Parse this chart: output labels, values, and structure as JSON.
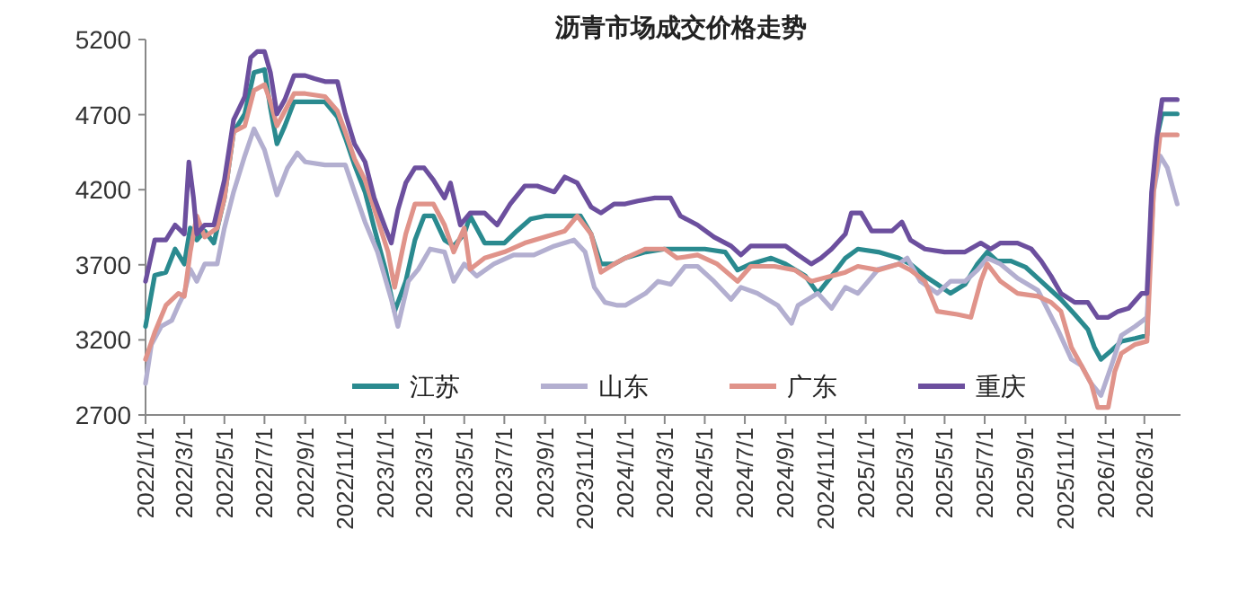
{
  "chart_data": {
    "type": "line",
    "title": "沥青市场成交价格走势",
    "xlim": [
      "2022-01-01",
      "2026-04-25"
    ],
    "ylim": [
      2700,
      5200
    ],
    "yticks": [
      2700,
      3200,
      3700,
      4200,
      4700,
      5200
    ],
    "xticks": [
      {
        "value": "2022-01-01",
        "label": "2022/1/1"
      },
      {
        "value": "2022-03-01",
        "label": "2022/3/1"
      },
      {
        "value": "2022-05-01",
        "label": "2022/5/1"
      },
      {
        "value": "2022-07-01",
        "label": "2022/7/1"
      },
      {
        "value": "2022-09-01",
        "label": "2022/9/1"
      },
      {
        "value": "2022-11-01",
        "label": "2022/11/1"
      },
      {
        "value": "2023-01-01",
        "label": "2023/1/1"
      },
      {
        "value": "2023-03-01",
        "label": "2023/3/1"
      },
      {
        "value": "2023-05-01",
        "label": "2023/5/1"
      },
      {
        "value": "2023-07-01",
        "label": "2023/7/1"
      },
      {
        "value": "2023-09-01",
        "label": "2023/9/1"
      },
      {
        "value": "2023-11-01",
        "label": "2023/11/1"
      },
      {
        "value": "2024-01-01",
        "label": "2024/1/1"
      },
      {
        "value": "2024-03-01",
        "label": "2024/3/1"
      },
      {
        "value": "2024-05-01",
        "label": "2024/5/1"
      },
      {
        "value": "2024-07-01",
        "label": "2024/7/1"
      },
      {
        "value": "2024-09-01",
        "label": "2024/9/1"
      },
      {
        "value": "2024-11-01",
        "label": "2024/11/1"
      },
      {
        "value": "2025-01-01",
        "label": "2025/1/1"
      },
      {
        "value": "2025-03-01",
        "label": "2025/3/1"
      },
      {
        "value": "2025-05-01",
        "label": "2025/5/1"
      },
      {
        "value": "2025-07-01",
        "label": "2025/7/1"
      },
      {
        "value": "2025-09-01",
        "label": "2025/9/1"
      },
      {
        "value": "2025-11-01",
        "label": "2025/11/1"
      },
      {
        "value": "2026-01-01",
        "label": "2026/1/1"
      },
      {
        "value": "2026-03-01",
        "label": "2026/3/1"
      }
    ],
    "grid": false,
    "legend": "bottom",
    "marker": "none",
    "line_style": "solid",
    "series": [
      {
        "name": "江苏",
        "color": "#2a8a8f",
        "x": [
          "2022-01-01",
          "2022-01-15",
          "2022-02-01",
          "2022-02-15",
          "2022-03-01",
          "2022-03-10",
          "2022-03-20",
          "2022-04-01",
          "2022-04-15",
          "2022-05-01",
          "2022-05-15",
          "2022-06-01",
          "2022-06-15",
          "2022-07-01",
          "2022-07-10",
          "2022-07-20",
          "2022-08-01",
          "2022-08-15",
          "2022-09-01",
          "2022-10-01",
          "2022-10-20",
          "2022-11-01",
          "2022-11-15",
          "2022-12-01",
          "2022-12-15",
          "2023-01-01",
          "2023-01-15",
          "2023-02-01",
          "2023-02-15",
          "2023-03-01",
          "2023-03-15",
          "2023-04-01",
          "2023-04-15",
          "2023-05-01",
          "2023-05-10",
          "2023-06-01",
          "2023-07-01",
          "2023-07-20",
          "2023-08-10",
          "2023-09-01",
          "2023-10-01",
          "2023-10-25",
          "2023-11-10",
          "2023-11-25",
          "2023-12-15",
          "2024-01-01",
          "2024-02-01",
          "2024-03-01",
          "2024-04-01",
          "2024-05-01",
          "2024-06-01",
          "2024-06-20",
          "2024-07-10",
          "2024-08-10",
          "2024-09-01",
          "2024-10-01",
          "2024-10-20",
          "2024-11-10",
          "2024-12-01",
          "2024-12-20",
          "2025-01-20",
          "2025-02-20",
          "2025-03-10",
          "2025-04-01",
          "2025-04-20",
          "2025-05-10",
          "2025-06-01",
          "2025-06-20",
          "2025-07-05",
          "2025-07-20",
          "2025-08-10",
          "2025-09-01",
          "2025-09-20",
          "2025-10-10",
          "2025-10-25",
          "2025-11-15",
          "2025-12-05",
          "2025-12-15",
          "2025-12-25",
          "2026-01-10",
          "2026-01-25",
          "2026-02-15",
          "2026-03-05",
          "2026-03-12",
          "2026-03-22",
          "2026-03-28",
          "2026-04-20"
        ],
        "values": [
          3290,
          3630,
          3650,
          3805,
          3705,
          3945,
          3865,
          3925,
          3845,
          4145,
          4585,
          4705,
          4980,
          5000,
          4745,
          4505,
          4625,
          4785,
          4785,
          4785,
          4685,
          4545,
          4365,
          4185,
          3945,
          3670,
          3390,
          3590,
          3865,
          4025,
          4025,
          3865,
          3825,
          3905,
          4025,
          3845,
          3845,
          3925,
          4005,
          4025,
          4025,
          4025,
          3905,
          3705,
          3705,
          3745,
          3785,
          3805,
          3805,
          3805,
          3785,
          3665,
          3705,
          3745,
          3705,
          3625,
          3510,
          3625,
          3745,
          3805,
          3785,
          3745,
          3705,
          3625,
          3570,
          3510,
          3570,
          3705,
          3785,
          3725,
          3725,
          3685,
          3610,
          3530,
          3470,
          3370,
          3270,
          3150,
          3070,
          3130,
          3190,
          3210,
          3230,
          4145,
          4585,
          4705,
          4705
        ]
      },
      {
        "name": "山东",
        "color": "#b3afd0",
        "x": [
          "2022-01-01",
          "2022-01-10",
          "2022-01-25",
          "2022-02-10",
          "2022-02-20",
          "2022-03-01",
          "2022-03-10",
          "2022-03-20",
          "2022-04-01",
          "2022-04-20",
          "2022-05-01",
          "2022-05-15",
          "2022-06-01",
          "2022-06-15",
          "2022-07-01",
          "2022-07-20",
          "2022-08-05",
          "2022-08-20",
          "2022-09-01",
          "2022-10-01",
          "2022-11-01",
          "2022-11-15",
          "2022-12-01",
          "2022-12-20",
          "2023-01-10",
          "2023-01-20",
          "2023-02-05",
          "2023-02-20",
          "2023-03-10",
          "2023-04-01",
          "2023-04-15",
          "2023-05-01",
          "2023-05-20",
          "2023-06-15",
          "2023-07-15",
          "2023-08-15",
          "2023-09-15",
          "2023-10-15",
          "2023-11-01",
          "2023-11-15",
          "2023-12-01",
          "2023-12-20",
          "2024-01-01",
          "2024-02-01",
          "2024-02-20",
          "2024-03-10",
          "2024-04-01",
          "2024-04-20",
          "2024-05-15",
          "2024-06-10",
          "2024-06-25",
          "2024-07-20",
          "2024-08-20",
          "2024-09-10",
          "2024-09-20",
          "2024-10-20",
          "2024-11-10",
          "2024-12-01",
          "2024-12-20",
          "2025-01-20",
          "2025-02-20",
          "2025-03-05",
          "2025-03-25",
          "2025-04-20",
          "2025-05-10",
          "2025-06-01",
          "2025-06-20",
          "2025-07-05",
          "2025-07-25",
          "2025-08-20",
          "2025-09-20",
          "2025-10-20",
          "2025-11-10",
          "2025-11-25",
          "2025-12-10",
          "2025-12-25",
          "2026-01-10",
          "2026-01-25",
          "2026-02-15",
          "2026-03-05",
          "2026-03-15",
          "2026-03-25",
          "2026-04-05",
          "2026-04-20"
        ],
        "values": [
          2910,
          3170,
          3290,
          3330,
          3430,
          3510,
          3670,
          3590,
          3705,
          3705,
          3945,
          4185,
          4425,
          4605,
          4465,
          4165,
          4345,
          4445,
          4385,
          4365,
          4365,
          4185,
          3985,
          3785,
          3470,
          3290,
          3590,
          3670,
          3805,
          3785,
          3590,
          3705,
          3625,
          3705,
          3765,
          3765,
          3825,
          3865,
          3785,
          3550,
          3450,
          3430,
          3430,
          3510,
          3590,
          3570,
          3690,
          3690,
          3590,
          3470,
          3550,
          3510,
          3430,
          3310,
          3430,
          3510,
          3410,
          3550,
          3510,
          3670,
          3705,
          3745,
          3590,
          3510,
          3590,
          3590,
          3665,
          3745,
          3705,
          3610,
          3530,
          3270,
          3070,
          3030,
          2910,
          2830,
          3030,
          3230,
          3290,
          3350,
          4185,
          4425,
          4345,
          4105
        ]
      },
      {
        "name": "广东",
        "color": "#e0938a",
        "x": [
          "2022-01-01",
          "2022-01-15",
          "2022-02-01",
          "2022-02-20",
          "2022-03-01",
          "2022-03-10",
          "2022-03-20",
          "2022-04-01",
          "2022-04-20",
          "2022-05-01",
          "2022-05-15",
          "2022-06-01",
          "2022-06-15",
          "2022-07-01",
          "2022-07-10",
          "2022-07-20",
          "2022-08-01",
          "2022-08-15",
          "2022-09-01",
          "2022-10-01",
          "2022-10-20",
          "2022-11-01",
          "2022-11-15",
          "2022-12-01",
          "2022-12-20",
          "2023-01-05",
          "2023-01-15",
          "2023-02-01",
          "2023-02-15",
          "2023-03-15",
          "2023-04-01",
          "2023-04-15",
          "2023-05-01",
          "2023-05-10",
          "2023-06-01",
          "2023-07-01",
          "2023-08-01",
          "2023-09-01",
          "2023-10-01",
          "2023-10-20",
          "2023-11-10",
          "2023-11-25",
          "2023-12-15",
          "2024-01-01",
          "2024-02-01",
          "2024-03-01",
          "2024-03-20",
          "2024-04-20",
          "2024-05-20",
          "2024-06-20",
          "2024-07-10",
          "2024-08-15",
          "2024-09-15",
          "2024-10-10",
          "2024-11-10",
          "2024-12-01",
          "2024-12-20",
          "2025-01-20",
          "2025-02-20",
          "2025-03-10",
          "2025-04-01",
          "2025-04-20",
          "2025-05-20",
          "2025-06-10",
          "2025-06-25",
          "2025-07-05",
          "2025-07-25",
          "2025-08-20",
          "2025-09-20",
          "2025-10-10",
          "2025-10-25",
          "2025-11-10",
          "2025-11-25",
          "2025-12-10",
          "2025-12-20",
          "2026-01-05",
          "2026-01-15",
          "2026-01-25",
          "2026-02-15",
          "2026-03-05",
          "2026-03-15",
          "2026-03-25",
          "2026-04-20"
        ],
        "values": [
          3070,
          3250,
          3430,
          3510,
          3490,
          3785,
          4025,
          3885,
          3945,
          4145,
          4585,
          4625,
          4860,
          4900,
          4785,
          4625,
          4725,
          4840,
          4840,
          4820,
          4725,
          4585,
          4405,
          4265,
          4005,
          3785,
          3550,
          3905,
          4105,
          4105,
          3965,
          3785,
          3945,
          3670,
          3745,
          3785,
          3845,
          3885,
          3925,
          4025,
          3905,
          3650,
          3705,
          3745,
          3805,
          3805,
          3745,
          3765,
          3705,
          3590,
          3690,
          3690,
          3665,
          3590,
          3625,
          3650,
          3690,
          3665,
          3705,
          3665,
          3590,
          3390,
          3370,
          3350,
          3590,
          3705,
          3590,
          3510,
          3490,
          3450,
          3390,
          3150,
          3030,
          2910,
          2750,
          2750,
          2990,
          3110,
          3170,
          3190,
          4185,
          4565,
          4565
        ]
      },
      {
        "name": "重庆",
        "color": "#6c4f9e",
        "x": [
          "2022-01-01",
          "2022-01-15",
          "2022-02-01",
          "2022-02-15",
          "2022-03-01",
          "2022-03-08",
          "2022-03-15",
          "2022-03-20",
          "2022-04-01",
          "2022-04-15",
          "2022-05-01",
          "2022-05-15",
          "2022-06-01",
          "2022-06-10",
          "2022-06-20",
          "2022-07-01",
          "2022-07-10",
          "2022-07-20",
          "2022-08-01",
          "2022-08-15",
          "2022-09-01",
          "2022-09-15",
          "2022-10-01",
          "2022-10-20",
          "2022-11-01",
          "2022-11-15",
          "2022-12-01",
          "2022-12-15",
          "2023-01-01",
          "2023-01-10",
          "2023-01-20",
          "2023-02-01",
          "2023-02-15",
          "2023-03-01",
          "2023-03-15",
          "2023-04-01",
          "2023-04-10",
          "2023-04-25",
          "2023-05-10",
          "2023-06-01",
          "2023-06-20",
          "2023-07-10",
          "2023-08-01",
          "2023-08-20",
          "2023-09-15",
          "2023-10-01",
          "2023-10-20",
          "2023-11-10",
          "2023-11-25",
          "2023-12-15",
          "2024-01-01",
          "2024-01-20",
          "2024-02-15",
          "2024-03-10",
          "2024-03-25",
          "2024-04-20",
          "2024-05-15",
          "2024-06-10",
          "2024-06-25",
          "2024-07-10",
          "2024-08-01",
          "2024-09-01",
          "2024-09-20",
          "2024-10-10",
          "2024-10-25",
          "2024-11-10",
          "2024-12-01",
          "2024-12-10",
          "2024-12-25",
          "2025-01-10",
          "2025-02-10",
          "2025-02-25",
          "2025-03-10",
          "2025-04-01",
          "2025-05-01",
          "2025-06-01",
          "2025-06-25",
          "2025-07-10",
          "2025-07-25",
          "2025-08-20",
          "2025-09-10",
          "2025-09-25",
          "2025-10-10",
          "2025-10-25",
          "2025-11-15",
          "2025-12-05",
          "2025-12-20",
          "2026-01-05",
          "2026-01-20",
          "2026-02-05",
          "2026-02-25",
          "2026-03-05",
          "2026-03-12",
          "2026-03-20",
          "2026-03-28",
          "2026-04-20"
        ],
        "values": [
          3590,
          3865,
          3865,
          3965,
          3905,
          4385,
          4145,
          3905,
          3965,
          3965,
          4265,
          4665,
          4820,
          5080,
          5120,
          5120,
          4980,
          4705,
          4800,
          4960,
          4960,
          4940,
          4920,
          4920,
          4705,
          4505,
          4385,
          4145,
          3945,
          3845,
          4065,
          4245,
          4345,
          4345,
          4265,
          4145,
          4245,
          3965,
          4045,
          4045,
          3965,
          4105,
          4225,
          4225,
          4185,
          4285,
          4245,
          4085,
          4045,
          4105,
          4105,
          4125,
          4145,
          4145,
          4025,
          3965,
          3885,
          3825,
          3765,
          3825,
          3825,
          3825,
          3765,
          3705,
          3745,
          3805,
          3905,
          4045,
          4045,
          3925,
          3925,
          3985,
          3865,
          3805,
          3785,
          3785,
          3845,
          3805,
          3845,
          3845,
          3805,
          3725,
          3625,
          3510,
          3450,
          3450,
          3350,
          3350,
          3390,
          3410,
          3510,
          3510,
          4185,
          4545,
          4800,
          4800
        ]
      }
    ]
  }
}
